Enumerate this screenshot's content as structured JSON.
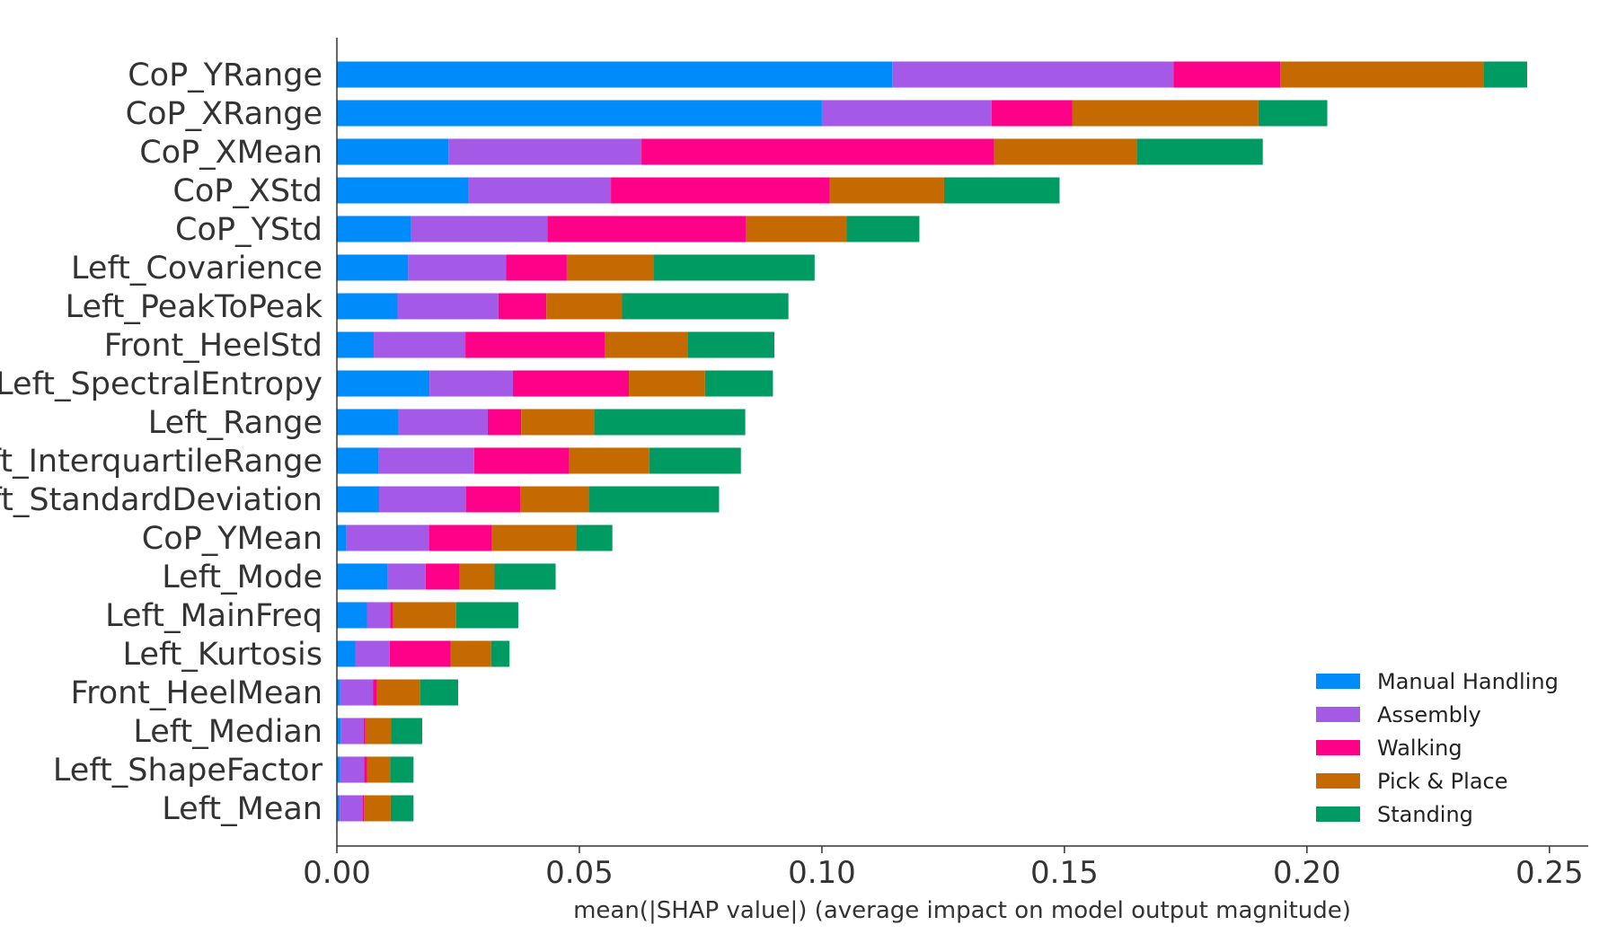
{
  "chart_data": {
    "type": "bar",
    "orientation": "horizontal",
    "stacked": true,
    "title": "",
    "xlabel": "mean(|SHAP value|) (average impact on model output magnitude)",
    "ylabel": "",
    "xlim": [
      0,
      0.258
    ],
    "xticks": [
      0.0,
      0.05,
      0.1,
      0.15,
      0.2,
      0.25
    ],
    "xtick_labels": [
      "0.00",
      "0.05",
      "0.10",
      "0.15",
      "0.20",
      "0.25"
    ],
    "grid": false,
    "legend_position": "lower-right",
    "categories": [
      "CoP_YRange",
      "CoP_XRange",
      "CoP_XMean",
      "CoP_XStd",
      "CoP_YStd",
      "Left_Covarience",
      "Left_PeakToPeak",
      "Front_HeelStd",
      "Left_SpectralEntropy",
      "Left_Range",
      "Left_InterquartileRange",
      "Left_StandardDeviation",
      "CoP_YMean",
      "Left_Mode",
      "Left_MainFreq",
      "Left_Kurtosis",
      "Front_HeelMean",
      "Left_Median",
      "Left_ShapeFactor",
      "Left_Mean"
    ],
    "series": [
      {
        "name": "Manual Handling",
        "color": "#008bfb",
        "values": [
          0.1145,
          0.1,
          0.023,
          0.0272,
          0.0153,
          0.0147,
          0.0125,
          0.0076,
          0.0191,
          0.0127,
          0.0086,
          0.0087,
          0.002,
          0.0105,
          0.0062,
          0.0038,
          0.0007,
          0.0008,
          0.0007,
          0.0006
        ]
      },
      {
        "name": "Assembly",
        "color": "#a55ae7",
        "values": [
          0.058,
          0.035,
          0.0398,
          0.0293,
          0.0281,
          0.0202,
          0.0208,
          0.0189,
          0.0172,
          0.0184,
          0.0197,
          0.0179,
          0.017,
          0.0078,
          0.0048,
          0.0071,
          0.0068,
          0.0047,
          0.0049,
          0.0047
        ]
      },
      {
        "name": "Walking",
        "color": "#ff0088",
        "values": [
          0.022,
          0.0166,
          0.0727,
          0.0451,
          0.041,
          0.0125,
          0.0099,
          0.0287,
          0.0239,
          0.0069,
          0.0196,
          0.0112,
          0.013,
          0.007,
          0.0006,
          0.0126,
          0.0008,
          0.0004,
          0.0006,
          0.0003
        ]
      },
      {
        "name": "Pick & Place",
        "color": "#c46a00",
        "values": [
          0.0419,
          0.0384,
          0.0294,
          0.0236,
          0.0207,
          0.0179,
          0.0156,
          0.0171,
          0.0157,
          0.015,
          0.0165,
          0.0141,
          0.0173,
          0.0072,
          0.013,
          0.0083,
          0.0089,
          0.0053,
          0.0048,
          0.0055
        ]
      },
      {
        "name": "Standing",
        "color": "#009a63",
        "values": [
          0.009,
          0.0142,
          0.026,
          0.0238,
          0.015,
          0.0332,
          0.0343,
          0.0179,
          0.014,
          0.0312,
          0.0189,
          0.0269,
          0.0075,
          0.0126,
          0.0128,
          0.0038,
          0.0078,
          0.0064,
          0.0048,
          0.0047
        ]
      }
    ]
  }
}
